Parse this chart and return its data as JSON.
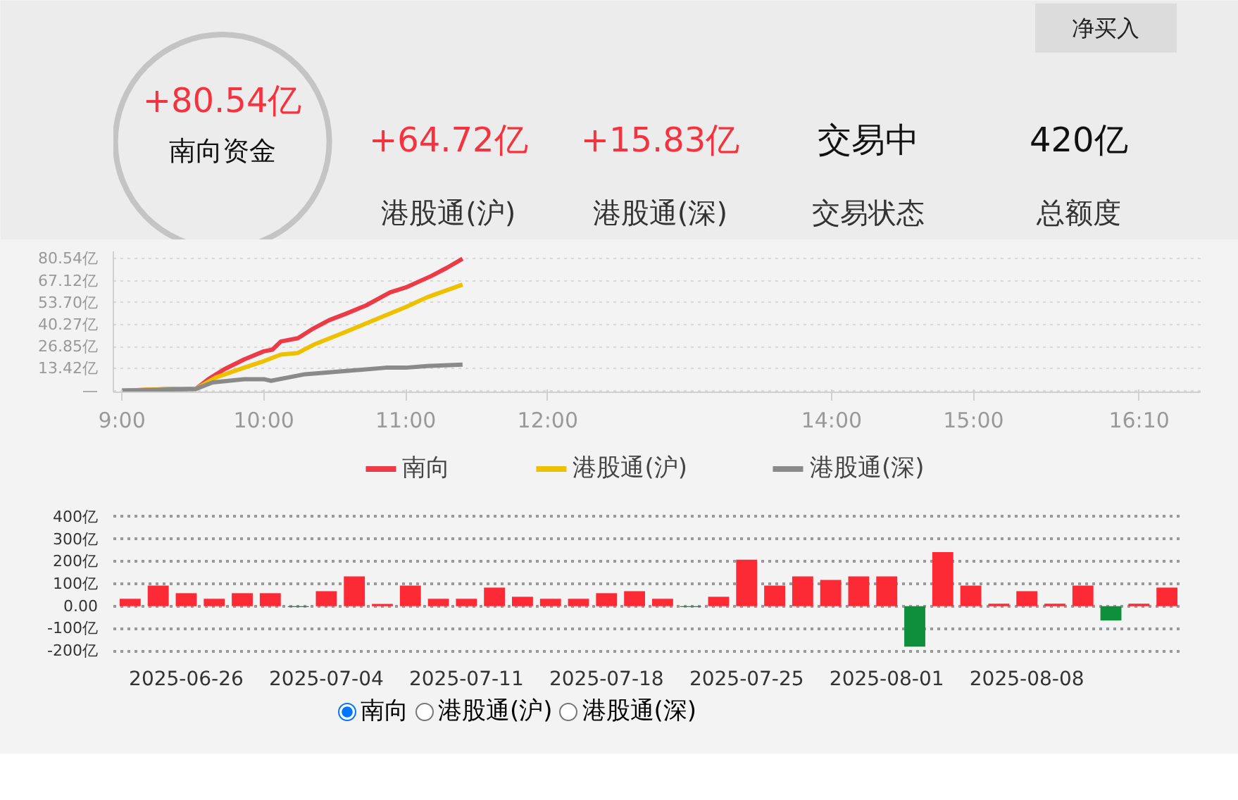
{
  "chart_data": [
    {
      "type": "other",
      "annotations": [
        "净买入",
        "+80.54亿",
        "南向资金",
        "+64.72亿",
        "港股通(沪)",
        "+15.83亿",
        "港股通(深)",
        "交易中",
        "交易状态",
        "420亿",
        "总额度"
      ],
      "colors": [
        "#222222",
        "#f5333f",
        "#111111",
        "#f5333f",
        "#333333",
        "#f5333f",
        "#333333",
        "#111111",
        "#333333",
        "#111111",
        "#333333"
      ]
    },
    {
      "type": "line",
      "legend": "bottom",
      "grid": "y",
      "xlim": [
        8.94,
        16.6
      ],
      "ylim": [
        -1,
        85
      ],
      "xticks": [
        {
          "value": 9,
          "label": "9:00"
        },
        {
          "value": 10,
          "label": "10:00"
        },
        {
          "value": 11,
          "label": "11:00"
        },
        {
          "value": 12,
          "label": "12:00"
        },
        {
          "value": 14,
          "label": "14:00"
        },
        {
          "value": 15,
          "label": "15:00"
        },
        {
          "value": 16.1667,
          "label": "16:10"
        }
      ],
      "yticks": [
        {
          "value": 0,
          "label": "—"
        },
        {
          "value": 13.42,
          "label": "13.42亿"
        },
        {
          "value": 26.85,
          "label": "26.85亿"
        },
        {
          "value": 40.27,
          "label": "40.27亿"
        },
        {
          "value": 53.7,
          "label": "53.70亿"
        },
        {
          "value": 67.12,
          "label": "67.12亿"
        },
        {
          "value": 80.54,
          "label": "80.54亿"
        }
      ],
      "series": [
        {
          "name": "南向",
          "color": "#ec3b47",
          "x": [
            9.0,
            9.35,
            9.52,
            9.61,
            9.72,
            9.86,
            10.0,
            10.06,
            10.12,
            10.24,
            10.35,
            10.46,
            10.58,
            10.72,
            10.89,
            11.0,
            11.18,
            11.29,
            11.4
          ],
          "values": [
            0,
            1,
            1,
            7,
            13,
            19,
            24,
            25,
            30,
            32,
            38,
            43,
            47,
            52,
            60,
            63,
            70,
            75,
            80.54
          ]
        },
        {
          "name": "港股通(沪)",
          "color": "#eec100",
          "x": [
            9.0,
            9.35,
            9.52,
            9.66,
            9.86,
            10.0,
            10.12,
            10.24,
            10.35,
            10.58,
            10.72,
            11.0,
            11.15,
            11.4
          ],
          "values": [
            0,
            1,
            1,
            8,
            14,
            18,
            22,
            23,
            28,
            36,
            41,
            51,
            57,
            64.72
          ]
        },
        {
          "name": "港股通(深)",
          "color": "#8a8a8a",
          "x": [
            9.0,
            9.52,
            9.64,
            9.86,
            10.0,
            10.05,
            10.29,
            10.58,
            10.86,
            11.0,
            11.15,
            11.4
          ],
          "values": [
            0,
            1,
            5,
            7,
            7,
            6,
            10,
            12,
            14,
            14,
            15,
            15.83
          ]
        }
      ]
    },
    {
      "type": "bar",
      "grid": "y",
      "ylim": [
        -215,
        415
      ],
      "yticks": [
        {
          "value": -200,
          "label": "-200亿"
        },
        {
          "value": -100,
          "label": "-100亿"
        },
        {
          "value": 0,
          "label": "0.00"
        },
        {
          "value": 100,
          "label": "100亿"
        },
        {
          "value": 200,
          "label": "200亿"
        },
        {
          "value": 300,
          "label": "300亿"
        },
        {
          "value": 400,
          "label": "400亿"
        }
      ],
      "categories": [
        null,
        null,
        "2025-06-26",
        null,
        null,
        null,
        null,
        "2025-07-04",
        null,
        null,
        null,
        null,
        "2025-07-11",
        null,
        null,
        null,
        null,
        "2025-07-18",
        null,
        null,
        null,
        null,
        "2025-07-25",
        null,
        null,
        null,
        null,
        "2025-08-01",
        null,
        null,
        null,
        null,
        "2025-08-08",
        null,
        null,
        null,
        null,
        null
      ],
      "values": [
        33,
        92,
        58,
        33,
        58,
        58,
        -4,
        67,
        133,
        10,
        92,
        33,
        33,
        83,
        42,
        33,
        33,
        58,
        67,
        33,
        -4,
        42,
        208,
        92,
        133,
        117,
        133,
        133,
        -181,
        242,
        92,
        11,
        67,
        11,
        92,
        -64,
        11,
        83
      ],
      "colors": [
        "#fc2a35",
        "#fc2a35",
        "#fc2a35",
        "#fc2a35",
        "#fc2a35",
        "#fc2a35",
        "#0e8f3c",
        "#fc2a35",
        "#fc2a35",
        "#fc2a35",
        "#fc2a35",
        "#fc2a35",
        "#fc2a35",
        "#fc2a35",
        "#fc2a35",
        "#fc2a35",
        "#fc2a35",
        "#fc2a35",
        "#fc2a35",
        "#fc2a35",
        "#0e8f3c",
        "#fc2a35",
        "#fc2a35",
        "#fc2a35",
        "#fc2a35",
        "#fc2a35",
        "#fc2a35",
        "#fc2a35",
        "#0e8f3c",
        "#fc2a35",
        "#fc2a35",
        "#fc2a35",
        "#fc2a35",
        "#fc2a35",
        "#fc2a35",
        "#0e8f3c",
        "#fc2a35",
        "#fc2a35"
      ],
      "annotations": [
        "南向",
        "港股通(沪)",
        "港股通(深)"
      ]
    }
  ]
}
